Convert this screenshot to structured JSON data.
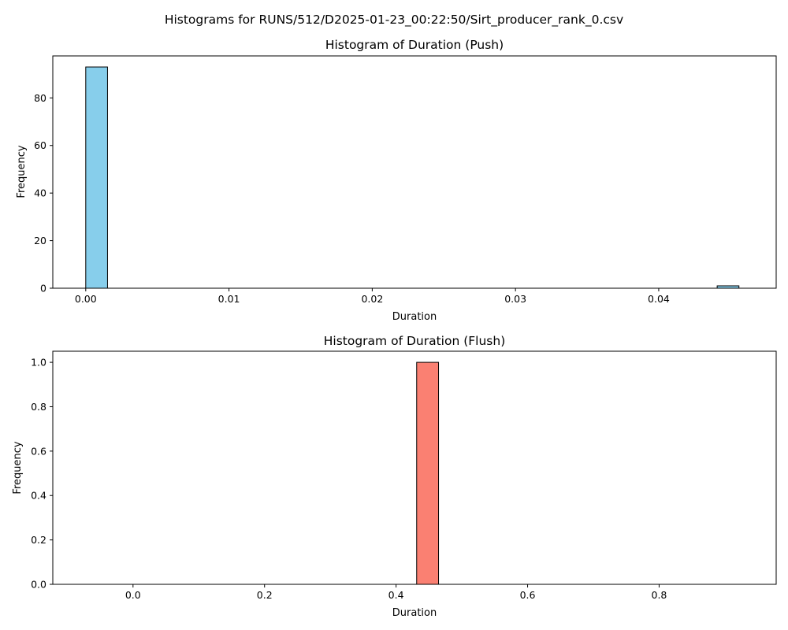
{
  "figure": {
    "suptitle": "Histograms for RUNS/512/D2025-01-23_00:22:50/Sirt_producer_rank_0.csv"
  },
  "chart_data": [
    {
      "type": "bar",
      "title": "Histogram of Duration (Push)",
      "xlabel": "Duration",
      "ylabel": "Frequency",
      "xlim": [
        -0.0023,
        0.0482
      ],
      "ylim": [
        0,
        97.65
      ],
      "xticks": [
        0.0,
        0.01,
        0.02,
        0.03,
        0.04
      ],
      "xtick_labels": [
        "0.00",
        "0.01",
        "0.02",
        "0.03",
        "0.04"
      ],
      "yticks": [
        0,
        20,
        40,
        60,
        80
      ],
      "ytick_labels": [
        "0",
        "20",
        "40",
        "60",
        "80"
      ],
      "bin_width": 0.00152,
      "bins": [
        {
          "x0": 0.0,
          "x1": 0.00152,
          "count": 93
        },
        {
          "x0": 0.04408,
          "x1": 0.0456,
          "count": 1
        }
      ],
      "color": "#87CEEB",
      "edgecolor": "#000000"
    },
    {
      "type": "bar",
      "title": "Histogram of Duration (Flush)",
      "xlabel": "Duration",
      "ylabel": "Frequency",
      "xlim": [
        -0.122,
        0.978
      ],
      "ylim": [
        0,
        1.05
      ],
      "xticks": [
        0.0,
        0.2,
        0.4,
        0.6,
        0.8
      ],
      "xtick_labels": [
        "0.0",
        "0.2",
        "0.4",
        "0.6",
        "0.8"
      ],
      "yticks": [
        0.0,
        0.2,
        0.4,
        0.6,
        0.8,
        1.0
      ],
      "ytick_labels": [
        "0.0",
        "0.2",
        "0.4",
        "0.6",
        "0.8",
        "1.0"
      ],
      "bin_width": 0.0333,
      "empty_range": [
        -0.072,
        0.928
      ],
      "bins": [
        {
          "x0": 0.4313,
          "x1": 0.4646,
          "count": 1
        }
      ],
      "color": "#FA8072",
      "edgecolor": "#000000"
    }
  ]
}
